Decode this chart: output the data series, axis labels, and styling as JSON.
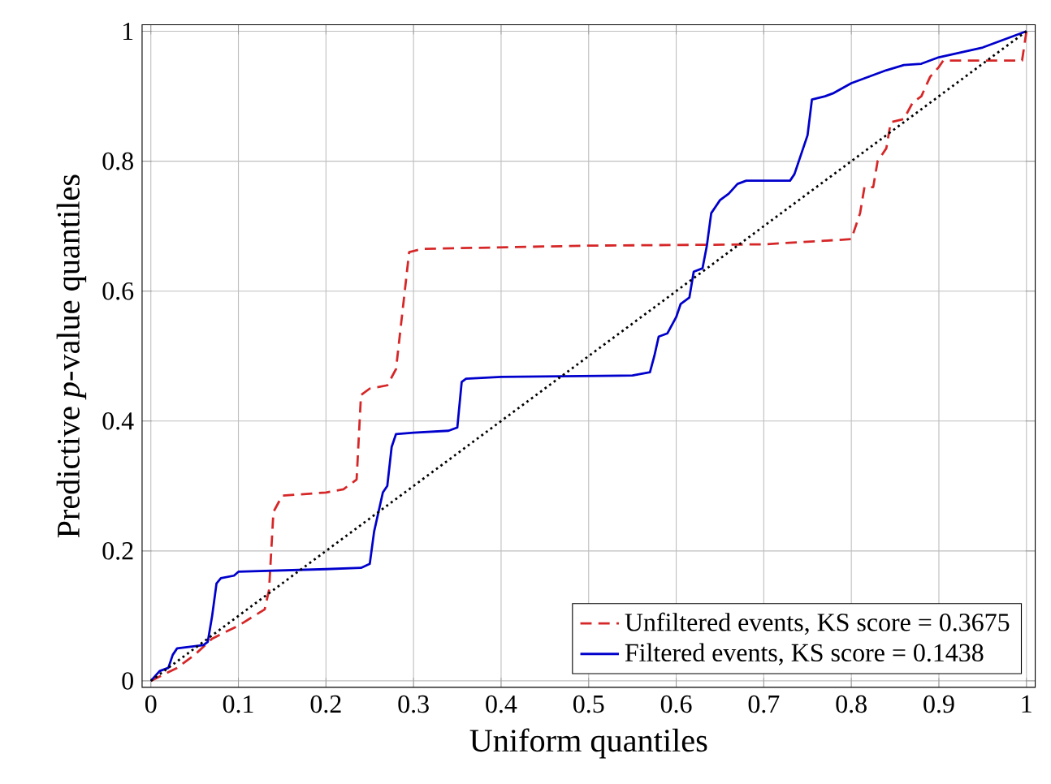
{
  "chart_data": {
    "type": "line",
    "xlabel": "Uniform quantiles",
    "ylabel": "Predictive *p*-value quantiles",
    "xlim": [
      -0.01,
      1.01
    ],
    "ylim": [
      -0.01,
      1.01
    ],
    "xticks": [
      0,
      0.1,
      0.2,
      0.3,
      0.4,
      0.5,
      0.6,
      0.7,
      0.8,
      0.9,
      1
    ],
    "yticks": [
      0,
      0.2,
      0.4,
      0.6,
      0.8,
      1
    ],
    "grid": true,
    "legend": "bottom right",
    "marker": "none",
    "series": [
      {
        "name": "Unfiltered events, KS score = 0.3675",
        "color": "#d62728",
        "line_style": "dashed",
        "x": [
          0,
          0.03,
          0.05,
          0.07,
          0.1,
          0.13,
          0.135,
          0.14,
          0.15,
          0.2,
          0.22,
          0.235,
          0.24,
          0.25,
          0.27,
          0.28,
          0.29,
          0.295,
          0.31,
          0.5,
          0.7,
          0.8,
          0.81,
          0.815,
          0.825,
          0.83,
          0.84,
          0.845,
          0.86,
          0.87,
          0.88,
          0.89,
          0.9,
          0.905,
          0.95,
          0.995,
          1
        ],
        "values": [
          0,
          0.02,
          0.04,
          0.065,
          0.085,
          0.11,
          0.14,
          0.26,
          0.285,
          0.29,
          0.295,
          0.31,
          0.44,
          0.45,
          0.455,
          0.48,
          0.6,
          0.66,
          0.665,
          0.67,
          0.672,
          0.68,
          0.72,
          0.76,
          0.76,
          0.8,
          0.82,
          0.86,
          0.865,
          0.89,
          0.9,
          0.93,
          0.945,
          0.955,
          0.955,
          0.955,
          1
        ]
      },
      {
        "name": "Filtered events, KS score = 0.1438",
        "color": "#0000cc",
        "line_style": "solid",
        "x": [
          0,
          0.01,
          0.02,
          0.025,
          0.03,
          0.06,
          0.065,
          0.07,
          0.075,
          0.08,
          0.095,
          0.1,
          0.2,
          0.24,
          0.25,
          0.255,
          0.26,
          0.265,
          0.27,
          0.275,
          0.28,
          0.3,
          0.34,
          0.35,
          0.355,
          0.36,
          0.4,
          0.55,
          0.57,
          0.575,
          0.58,
          0.59,
          0.6,
          0.605,
          0.615,
          0.62,
          0.63,
          0.635,
          0.64,
          0.65,
          0.66,
          0.67,
          0.68,
          0.73,
          0.735,
          0.74,
          0.75,
          0.755,
          0.77,
          0.78,
          0.8,
          0.82,
          0.84,
          0.86,
          0.88,
          0.9,
          0.95,
          0.98,
          1
        ],
        "values": [
          0,
          0.015,
          0.02,
          0.04,
          0.05,
          0.055,
          0.06,
          0.1,
          0.15,
          0.158,
          0.162,
          0.168,
          0.172,
          0.174,
          0.18,
          0.23,
          0.26,
          0.29,
          0.3,
          0.36,
          0.38,
          0.382,
          0.385,
          0.39,
          0.46,
          0.465,
          0.468,
          0.47,
          0.475,
          0.5,
          0.53,
          0.535,
          0.56,
          0.58,
          0.59,
          0.63,
          0.635,
          0.67,
          0.72,
          0.74,
          0.75,
          0.765,
          0.77,
          0.77,
          0.78,
          0.8,
          0.84,
          0.895,
          0.9,
          0.905,
          0.92,
          0.93,
          0.94,
          0.948,
          0.95,
          0.96,
          0.975,
          0.99,
          1
        ]
      },
      {
        "color": "#000000",
        "line_style": "dotted",
        "x": [
          0,
          1
        ],
        "values": [
          0,
          1
        ]
      }
    ]
  }
}
